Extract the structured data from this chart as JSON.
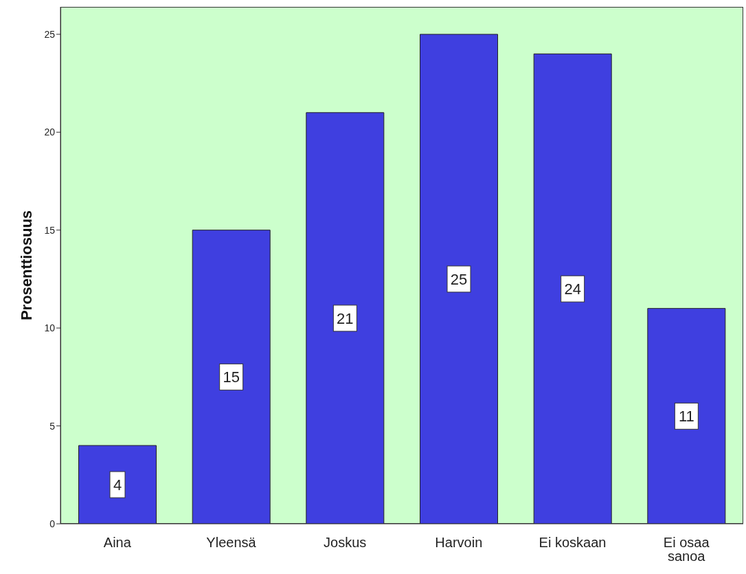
{
  "chart_data": {
    "type": "bar",
    "ylabel": "Prosenttiosuus",
    "categories": [
      "Aina",
      "Yleensä",
      "Joskus",
      "Harvoin",
      "Ei koskaan",
      "Ei osaa sanoa"
    ],
    "values": [
      4,
      15,
      21,
      25,
      24,
      11
    ],
    "color": "#3f3fe0",
    "ylim": [
      0,
      26.4
    ],
    "yticks": [
      0,
      5,
      10,
      15,
      20,
      25
    ],
    "grid": false,
    "data_labels": true
  }
}
